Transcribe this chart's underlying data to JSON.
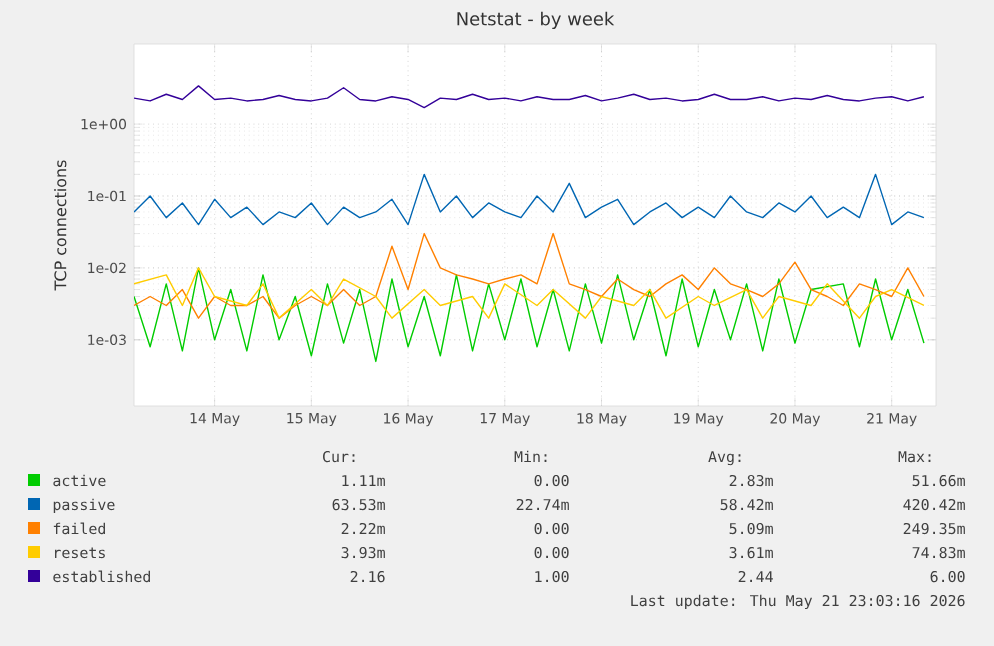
{
  "chart_data": {
    "type": "line",
    "title": "Netstat - by week",
    "ylabel": "TCP connections",
    "log": "y",
    "grid": true,
    "legend": "bottom",
    "marker": "none",
    "line_style": "solid",
    "ylim": [
      0.00012,
      13
    ],
    "yticks": [
      {
        "value": 0.001,
        "label": "1e-03"
      },
      {
        "value": 0.01,
        "label": "1e-02"
      },
      {
        "value": 0.1,
        "label": "1e-01"
      },
      {
        "value": 1,
        "label": "1e+00"
      }
    ],
    "xlim": [
      "2026-05-13T16:00",
      "2026-05-21T23:00"
    ],
    "xticks": [
      {
        "value": "2026-05-14T12:00",
        "label": "14 May"
      },
      {
        "value": "2026-05-15T12:00",
        "label": "15 May"
      },
      {
        "value": "2026-05-16T12:00",
        "label": "16 May"
      },
      {
        "value": "2026-05-17T12:00",
        "label": "17 May"
      },
      {
        "value": "2026-05-18T12:00",
        "label": "18 May"
      },
      {
        "value": "2026-05-19T12:00",
        "label": "19 May"
      },
      {
        "value": "2026-05-20T12:00",
        "label": "20 May"
      },
      {
        "value": "2026-05-21T12:00",
        "label": "21 May"
      }
    ],
    "x": [
      "2026-05-13T16:00",
      "2026-05-13T20:00",
      "2026-05-14T00:00",
      "2026-05-14T04:00",
      "2026-05-14T08:00",
      "2026-05-14T12:00",
      "2026-05-14T16:00",
      "2026-05-14T20:00",
      "2026-05-15T00:00",
      "2026-05-15T04:00",
      "2026-05-15T08:00",
      "2026-05-15T12:00",
      "2026-05-15T16:00",
      "2026-05-15T20:00",
      "2026-05-16T00:00",
      "2026-05-16T04:00",
      "2026-05-16T08:00",
      "2026-05-16T12:00",
      "2026-05-16T16:00",
      "2026-05-16T20:00",
      "2026-05-17T00:00",
      "2026-05-17T04:00",
      "2026-05-17T08:00",
      "2026-05-17T12:00",
      "2026-05-17T16:00",
      "2026-05-17T20:00",
      "2026-05-18T00:00",
      "2026-05-18T04:00",
      "2026-05-18T08:00",
      "2026-05-18T12:00",
      "2026-05-18T16:00",
      "2026-05-18T20:00",
      "2026-05-19T00:00",
      "2026-05-19T04:00",
      "2026-05-19T08:00",
      "2026-05-19T12:00",
      "2026-05-19T16:00",
      "2026-05-19T20:00",
      "2026-05-20T00:00",
      "2026-05-20T04:00",
      "2026-05-20T08:00",
      "2026-05-20T12:00",
      "2026-05-20T16:00",
      "2026-05-20T20:00",
      "2026-05-21T00:00",
      "2026-05-21T04:00",
      "2026-05-21T08:00",
      "2026-05-21T12:00",
      "2026-05-21T16:00",
      "2026-05-21T20:00"
    ],
    "series": [
      {
        "name": "active",
        "color": "#00cc00",
        "values": [
          0.004,
          0.0008,
          0.006,
          0.0007,
          0.01,
          0.001,
          0.005,
          0.0007,
          0.008,
          0.001,
          0.004,
          0.0006,
          0.006,
          0.0009,
          0.005,
          0.0005,
          0.007,
          0.0008,
          0.004,
          0.0006,
          0.008,
          0.0007,
          0.006,
          0.001,
          0.007,
          0.0008,
          0.005,
          0.0007,
          0.006,
          0.0009,
          0.008,
          0.001,
          0.005,
          0.0006,
          0.007,
          0.0008,
          0.005,
          0.001,
          0.006,
          0.0007,
          0.007,
          0.0009,
          0.005,
          null,
          0.006,
          0.0008,
          0.007,
          0.001,
          0.005,
          0.0009
        ]
      },
      {
        "name": "passive",
        "color": "#0066b3",
        "values": [
          0.06,
          0.1,
          0.05,
          0.08,
          0.04,
          0.09,
          0.05,
          0.07,
          0.04,
          0.06,
          0.05,
          0.08,
          0.04,
          0.07,
          0.05,
          0.06,
          0.09,
          0.04,
          0.2,
          0.06,
          0.1,
          0.05,
          0.08,
          0.06,
          0.05,
          0.1,
          0.06,
          0.15,
          0.05,
          0.07,
          0.09,
          0.04,
          0.06,
          0.08,
          0.05,
          0.07,
          0.05,
          0.1,
          0.06,
          0.05,
          0.08,
          0.06,
          0.1,
          0.05,
          0.07,
          0.05,
          0.2,
          0.04,
          0.06,
          0.05
        ]
      },
      {
        "name": "failed",
        "color": "#ff8000",
        "values": [
          0.003,
          0.004,
          0.003,
          0.005,
          0.002,
          0.004,
          0.003,
          0.003,
          0.004,
          0.002,
          0.003,
          0.004,
          0.003,
          0.005,
          0.003,
          0.004,
          0.02,
          0.005,
          0.03,
          0.01,
          0.008,
          0.007,
          0.006,
          0.007,
          0.008,
          0.006,
          0.03,
          0.006,
          0.005,
          0.004,
          0.007,
          0.005,
          0.004,
          0.006,
          0.008,
          0.005,
          0.01,
          0.006,
          0.005,
          0.004,
          0.006,
          0.012,
          0.005,
          0.004,
          0.003,
          0.006,
          0.005,
          0.004,
          0.01,
          0.004
        ]
      },
      {
        "name": "resets",
        "color": "#ffcc00",
        "values": [
          0.006,
          null,
          0.008,
          0.003,
          0.01,
          0.004,
          null,
          0.003,
          0.006,
          0.002,
          null,
          0.005,
          0.003,
          0.007,
          null,
          0.004,
          0.002,
          null,
          0.005,
          0.003,
          null,
          0.004,
          0.002,
          0.006,
          null,
          0.003,
          0.005,
          null,
          0.002,
          0.004,
          null,
          0.003,
          0.005,
          0.002,
          null,
          0.004,
          0.003,
          null,
          0.005,
          0.002,
          0.004,
          null,
          0.003,
          0.006,
          null,
          0.002,
          0.004,
          0.005,
          null,
          0.003
        ]
      },
      {
        "name": "established",
        "color": "#330099",
        "values": [
          2.3,
          2.1,
          2.6,
          2.2,
          3.4,
          2.2,
          2.3,
          2.1,
          2.2,
          2.5,
          2.2,
          2.1,
          2.3,
          3.2,
          2.2,
          2.1,
          2.4,
          2.2,
          1.7,
          2.3,
          2.2,
          2.6,
          2.2,
          2.3,
          2.1,
          2.4,
          2.2,
          2.2,
          2.5,
          2.1,
          2.3,
          2.6,
          2.2,
          2.3,
          2.1,
          2.2,
          2.6,
          2.2,
          2.2,
          2.4,
          2.1,
          2.3,
          2.2,
          2.5,
          2.2,
          2.1,
          2.3,
          2.4,
          2.1,
          2.4
        ]
      }
    ],
    "annotations": [
      "Cur:",
      "Min:",
      "Avg:",
      "Max:",
      "1.11m",
      "0.00",
      "2.83m",
      "51.66m",
      "63.53m",
      "22.74m",
      "58.42m",
      "420.42m",
      "2.22m",
      "0.00",
      "5.09m",
      "249.35m",
      "3.93m",
      "0.00",
      "3.61m",
      "74.83m",
      "2.16",
      "1.00",
      "2.44",
      "6.00",
      "Last update: Thu May 21 23:03:16 2026"
    ]
  }
}
